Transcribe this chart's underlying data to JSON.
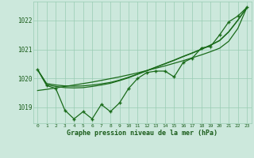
{
  "hours": [
    0,
    1,
    2,
    3,
    4,
    5,
    6,
    7,
    8,
    9,
    10,
    11,
    12,
    13,
    14,
    15,
    16,
    17,
    18,
    19,
    20,
    21,
    22,
    23
  ],
  "pressure_main": [
    1020.3,
    1019.75,
    1019.65,
    1018.9,
    1018.6,
    1018.85,
    1018.6,
    1019.1,
    1018.85,
    1019.15,
    1019.65,
    1020.0,
    1020.2,
    1020.25,
    1020.25,
    1020.05,
    1020.55,
    1020.7,
    1021.05,
    1021.1,
    1021.5,
    1021.95,
    1022.15,
    1022.45
  ],
  "pressure_smooth1": [
    1020.3,
    1019.78,
    1019.72,
    1019.68,
    1019.67,
    1019.68,
    1019.72,
    1019.77,
    1019.83,
    1019.92,
    1020.02,
    1020.14,
    1020.26,
    1020.38,
    1020.5,
    1020.62,
    1020.75,
    1020.87,
    1021.0,
    1021.14,
    1021.3,
    1021.6,
    1022.0,
    1022.45
  ],
  "pressure_smooth2": [
    1020.3,
    1019.82,
    1019.77,
    1019.74,
    1019.73,
    1019.74,
    1019.77,
    1019.81,
    1019.86,
    1019.94,
    1020.04,
    1020.15,
    1020.27,
    1020.39,
    1020.51,
    1020.63,
    1020.76,
    1020.88,
    1021.01,
    1021.15,
    1021.31,
    1021.61,
    1022.01,
    1022.45
  ],
  "pressure_trend": [
    1019.58,
    1019.62,
    1019.67,
    1019.72,
    1019.77,
    1019.82,
    1019.87,
    1019.93,
    1019.99,
    1020.05,
    1020.12,
    1020.19,
    1020.27,
    1020.35,
    1020.43,
    1020.52,
    1020.61,
    1020.71,
    1020.81,
    1020.92,
    1021.04,
    1021.28,
    1021.72,
    1022.45
  ],
  "line_color": "#1a6b1a",
  "bg_color": "#cce8dc",
  "grid_color": "#99ccb3",
  "text_color": "#1a5c1a",
  "ylim_min": 1018.45,
  "ylim_max": 1022.65,
  "yticks": [
    1019,
    1020,
    1021,
    1022
  ],
  "xlabel": "Graphe pression niveau de la mer (hPa)"
}
